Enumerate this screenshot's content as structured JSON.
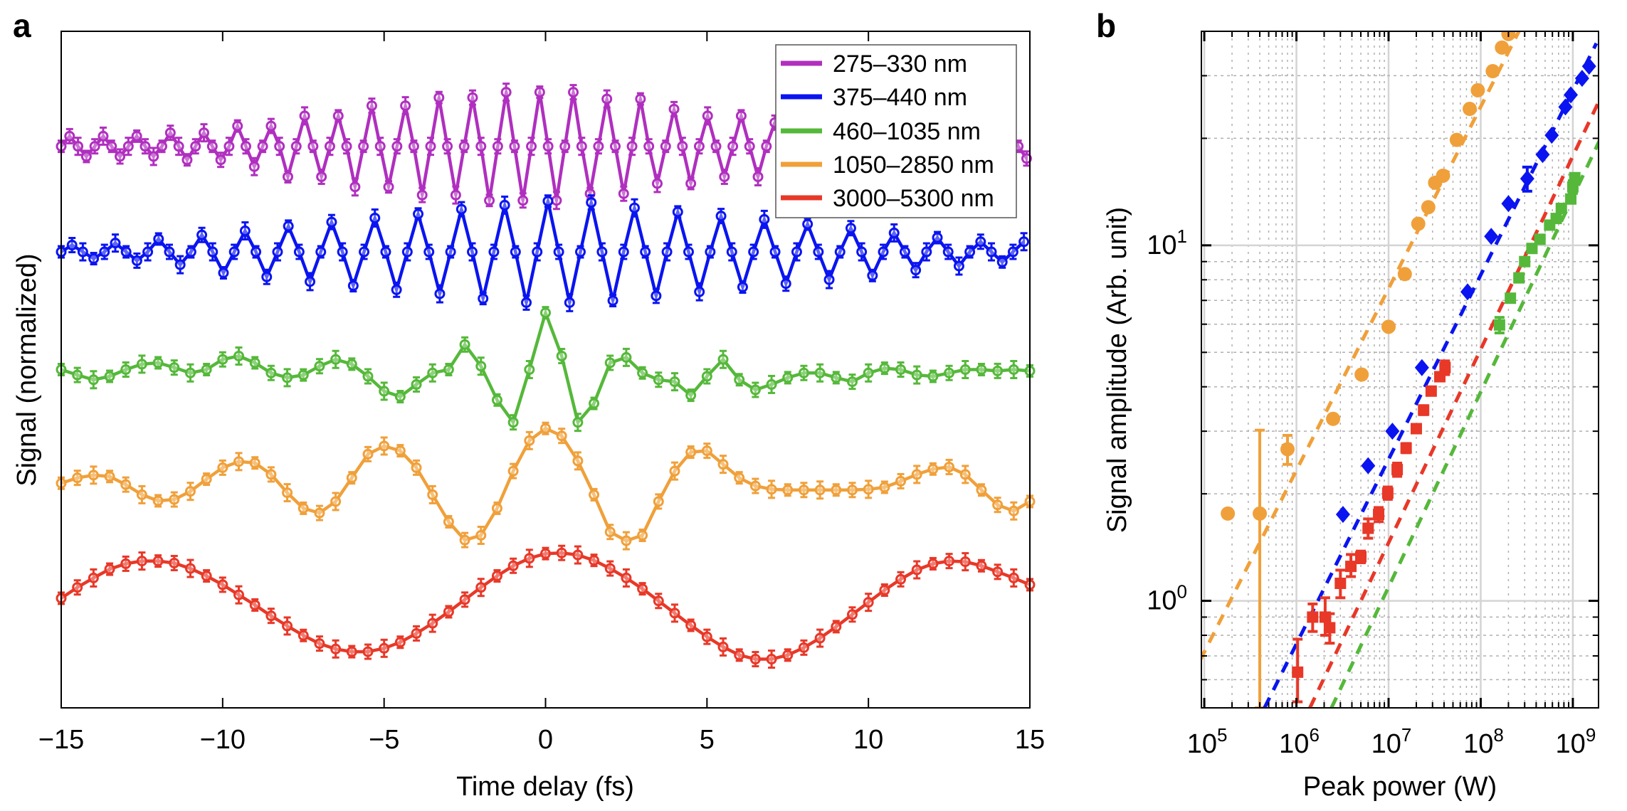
{
  "figure": {
    "panel_labels": [
      "a",
      "b"
    ]
  },
  "chart_data": [
    {
      "panel": "a",
      "type": "line",
      "title": "",
      "xlabel": "Time delay (fs)",
      "ylabel": "Signal (normalized)",
      "xlim": [
        -15,
        15
      ],
      "ylim": [
        0,
        10
      ],
      "xticks": [
        -15,
        -10,
        -5,
        0,
        5,
        10,
        15
      ],
      "xtick_labels": [
        "−15",
        "−10",
        "−5",
        "0",
        "5",
        "10",
        "15"
      ],
      "yticks_shown": false,
      "grid": false,
      "legend_position": "top-right",
      "markers": "open circles with error bars, joined by solid lines",
      "series": [
        {
          "name": "275–330 nm",
          "color": "#b02fbf",
          "x_start": -15,
          "x_step": 0.26,
          "y": [
            8.3,
            8.45,
            8.3,
            8.15,
            8.3,
            8.45,
            8.3,
            8.15,
            8.3,
            8.45,
            8.3,
            8.15,
            8.3,
            8.5,
            8.3,
            8.1,
            8.3,
            8.5,
            8.3,
            8.1,
            8.3,
            8.6,
            8.3,
            8.0,
            8.3,
            8.6,
            8.3,
            7.85,
            8.3,
            8.75,
            8.3,
            7.85,
            8.3,
            8.75,
            8.3,
            7.7,
            8.3,
            8.9,
            8.3,
            7.7,
            8.3,
            8.9,
            8.3,
            7.58,
            8.3,
            9.02,
            8.3,
            7.58,
            8.3,
            9.02,
            8.3,
            7.5,
            8.3,
            9.1,
            8.3,
            7.5,
            8.3,
            9.1,
            8.3,
            7.5,
            8.3,
            9.1,
            8.3,
            7.6,
            8.3,
            9.0,
            8.3,
            7.6,
            8.3,
            9.0,
            8.3,
            7.75,
            8.3,
            8.85,
            8.3,
            7.75,
            8.3,
            8.75,
            8.3,
            7.85,
            8.3,
            8.75,
            8.3,
            7.85,
            8.3,
            8.65,
            8.3,
            7.95,
            8.3,
            8.65,
            8.3,
            7.95,
            8.3,
            8.65,
            8.3,
            7.95,
            8.3,
            8.55,
            8.3,
            8.05,
            8.3,
            8.55,
            8.3,
            8.05,
            8.3,
            8.55,
            8.3,
            8.05,
            8.3,
            8.48,
            8.3,
            8.12,
            8.3,
            8.48,
            8.3,
            8.12
          ]
        },
        {
          "name": "375–440 nm",
          "color": "#0a14f0",
          "x_start": -15,
          "x_step": 0.335,
          "y": [
            6.74,
            6.84,
            6.74,
            6.64,
            6.74,
            6.87,
            6.74,
            6.61,
            6.74,
            6.93,
            6.74,
            6.55,
            6.74,
            6.99,
            6.74,
            6.43,
            6.74,
            7.05,
            6.74,
            6.37,
            6.74,
            7.12,
            6.74,
            6.3,
            6.74,
            7.18,
            6.74,
            6.24,
            6.74,
            7.24,
            6.74,
            6.18,
            6.74,
            7.3,
            6.74,
            6.12,
            6.74,
            7.37,
            6.74,
            6.05,
            6.74,
            7.43,
            6.74,
            5.99,
            6.74,
            7.49,
            6.74,
            5.99,
            6.74,
            7.47,
            6.74,
            6.02,
            6.74,
            7.39,
            6.74,
            6.09,
            6.74,
            7.33,
            6.74,
            6.15,
            6.74,
            7.27,
            6.74,
            6.22,
            6.74,
            7.22,
            6.74,
            6.27,
            6.74,
            7.15,
            6.74,
            6.33,
            6.74,
            7.09,
            6.74,
            6.39,
            6.74,
            7.02,
            6.74,
            6.47,
            6.74,
            6.95,
            6.74,
            6.53,
            6.74,
            6.89,
            6.74,
            6.59,
            6.74,
            6.89
          ]
        },
        {
          "name": "460–1035 nm",
          "color": "#55b83a",
          "x_start": -15,
          "x_step": 0.5,
          "y": [
            5.0,
            4.92,
            4.85,
            4.9,
            5.0,
            5.08,
            5.1,
            5.03,
            4.95,
            5.0,
            5.15,
            5.2,
            5.1,
            4.95,
            4.88,
            4.92,
            5.05,
            5.15,
            5.08,
            4.9,
            4.68,
            4.6,
            4.78,
            4.95,
            5.0,
            5.37,
            5.05,
            4.55,
            4.22,
            5.0,
            5.84,
            5.2,
            4.22,
            4.5,
            5.1,
            5.18,
            4.95,
            4.85,
            4.82,
            4.62,
            4.9,
            5.15,
            4.85,
            4.7,
            4.78,
            4.88,
            4.95,
            4.95,
            4.88,
            4.82,
            4.95,
            5.02,
            5.0,
            4.92,
            4.9,
            4.95,
            5.0,
            5.0,
            4.98,
            5.0,
            4.98
          ]
        },
        {
          "name": "1050–2850 nm",
          "color": "#f0a03a",
          "x_start": -15,
          "x_step": 0.5,
          "y": [
            3.32,
            3.4,
            3.44,
            3.42,
            3.3,
            3.15,
            3.06,
            3.08,
            3.2,
            3.38,
            3.55,
            3.64,
            3.62,
            3.45,
            3.18,
            2.95,
            2.88,
            3.05,
            3.4,
            3.75,
            3.87,
            3.8,
            3.55,
            3.15,
            2.75,
            2.48,
            2.55,
            2.95,
            3.5,
            3.95,
            4.13,
            4.02,
            3.65,
            3.15,
            2.6,
            2.47,
            2.55,
            3.05,
            3.5,
            3.78,
            3.8,
            3.6,
            3.4,
            3.28,
            3.23,
            3.22,
            3.22,
            3.22,
            3.22,
            3.22,
            3.23,
            3.26,
            3.35,
            3.45,
            3.53,
            3.56,
            3.45,
            3.22,
            3.0,
            2.91,
            3.05
          ]
        },
        {
          "name": "3000–5300 nm",
          "color": "#e83828",
          "x_start": -15,
          "x_step": 0.5,
          "y": [
            1.62,
            1.78,
            1.92,
            2.05,
            2.13,
            2.17,
            2.17,
            2.14,
            2.06,
            1.95,
            1.82,
            1.67,
            1.52,
            1.36,
            1.21,
            1.07,
            0.95,
            0.87,
            0.83,
            0.83,
            0.88,
            0.97,
            1.1,
            1.25,
            1.42,
            1.6,
            1.78,
            1.95,
            2.1,
            2.21,
            2.28,
            2.29,
            2.26,
            2.18,
            2.06,
            1.92,
            1.76,
            1.58,
            1.4,
            1.22,
            1.05,
            0.9,
            0.78,
            0.72,
            0.72,
            0.78,
            0.89,
            1.03,
            1.2,
            1.38,
            1.56,
            1.74,
            1.9,
            2.04,
            2.13,
            2.17,
            2.16,
            2.1,
            2.01,
            1.92,
            1.82
          ]
        }
      ]
    },
    {
      "panel": "b",
      "type": "scatter",
      "title": "",
      "xlabel": "Peak power (W)",
      "ylabel": "Signal amplitude (Arb. unit)",
      "xscale": "log",
      "yscale": "log",
      "xlim": [
        93000,
        1900000000
      ],
      "ylim": [
        0.5,
        40
      ],
      "xticks": [
        100000,
        1000000,
        10000000,
        100000000,
        1000000000
      ],
      "xtick_labels": [
        {
          "base": "10",
          "exp": "5"
        },
        {
          "base": "10",
          "exp": "6"
        },
        {
          "base": "10",
          "exp": "7"
        },
        {
          "base": "10",
          "exp": "8"
        },
        {
          "base": "10",
          "exp": "9"
        }
      ],
      "yticks": [
        1,
        10
      ],
      "ytick_labels": [
        {
          "base": "10",
          "exp": "0"
        },
        {
          "base": "10",
          "exp": "1"
        }
      ],
      "grid": true,
      "series": [
        {
          "name": "1050–2850 nm",
          "color": "#f0a03a",
          "marker": "circle",
          "points": [
            [
              180000,
              1.76
            ],
            [
              400000,
              1.76
            ],
            [
              800000,
              2.67
            ],
            [
              2500000,
              3.25
            ],
            [
              5100000,
              4.33
            ],
            [
              10000000,
              5.9
            ],
            [
              15000000,
              8.3
            ],
            [
              21000000,
              11.5
            ],
            [
              27000000,
              12.8
            ],
            [
              32000000,
              15.0
            ],
            [
              39000000,
              15.7
            ],
            [
              55000000,
              19.8
            ],
            [
              76000000,
              24.2
            ],
            [
              93000000,
              27.3
            ],
            [
              135000000,
              30.9
            ],
            [
              170000000,
              36.0
            ],
            [
              200000000,
              39.3
            ]
          ],
          "errors": [
            [
              0,
              0
            ],
            [
              1.26,
              1.26
            ],
            [
              0.25,
              0.25
            ],
            [
              0,
              0
            ],
            [
              0,
              0
            ],
            [
              0,
              0
            ],
            [
              0,
              0
            ],
            [
              0,
              0
            ],
            [
              0,
              0
            ],
            [
              0,
              0
            ],
            [
              0,
              0
            ],
            [
              0,
              0
            ],
            [
              0,
              0
            ],
            [
              0,
              0
            ],
            [
              0,
              0
            ],
            [
              0,
              0
            ],
            [
              0,
              0
            ]
          ],
          "fit": {
            "style": "dashed",
            "from": [
              90000,
              0.68
            ],
            "to": [
              260000000,
              40
            ]
          }
        },
        {
          "name": "375–440 nm",
          "color": "#0a14f0",
          "marker": "diamond",
          "points": [
            [
              3200000,
              1.75
            ],
            [
              6000000,
              2.4
            ],
            [
              11000000,
              3.0
            ],
            [
              23000000,
              4.53
            ],
            [
              72000000,
              7.4
            ],
            [
              130000000,
              10.6
            ],
            [
              200000000,
              13.1
            ],
            [
              320000000,
              15.4
            ],
            [
              470000000,
              18.0
            ],
            [
              590000000,
              20.4
            ],
            [
              830000000,
              24.5
            ],
            [
              950000000,
              26.5
            ],
            [
              1260000000,
              29.5
            ],
            [
              1500000000,
              31.9
            ]
          ],
          "errors": [
            [
              0,
              0
            ],
            [
              0,
              0
            ],
            [
              0,
              0
            ],
            [
              0,
              0
            ],
            [
              0,
              0
            ],
            [
              0,
              0
            ],
            [
              0,
              0
            ],
            [
              1.2,
              1.2
            ],
            [
              0,
              0
            ],
            [
              0,
              0
            ],
            [
              0,
              0
            ],
            [
              0,
              0
            ],
            [
              0,
              0
            ],
            [
              0,
              0
            ]
          ],
          "fit": {
            "style": "dashed",
            "from": [
              450000,
              0.5
            ],
            "to": [
              1800000000,
              37
            ]
          }
        },
        {
          "name": "3000–5300 nm",
          "color": "#e83828",
          "marker": "square",
          "points": [
            [
              1030000,
              0.63
            ],
            [
              1500000,
              0.9
            ],
            [
              2050000,
              0.9
            ],
            [
              2300000,
              0.84
            ],
            [
              3000000,
              1.12
            ],
            [
              3900000,
              1.25
            ],
            [
              5000000,
              1.33
            ],
            [
              6000000,
              1.6
            ],
            [
              7800000,
              1.75
            ],
            [
              9800000,
              2.01
            ],
            [
              12400000,
              2.34
            ],
            [
              15500000,
              2.69
            ],
            [
              20000000,
              3.05
            ],
            [
              24000000,
              3.44
            ],
            [
              29000000,
              3.89
            ],
            [
              36000000,
              4.27
            ],
            [
              41000000,
              4.53
            ]
          ],
          "errors": [
            [
              0.11,
              0.15
            ],
            [
              0.08,
              0.08
            ],
            [
              0.1,
              0.12
            ],
            [
              0.08,
              0.08
            ],
            [
              0.1,
              0.1
            ],
            [
              0.08,
              0.1
            ],
            [
              0.05,
              0.05
            ],
            [
              0.1,
              0.1
            ],
            [
              0.08,
              0.08
            ],
            [
              0.08,
              0.08
            ],
            [
              0.1,
              0.1
            ],
            [
              0.08,
              0.08
            ],
            [
              0,
              0
            ],
            [
              0.1,
              0.1
            ],
            [
              0.1,
              0.1
            ],
            [
              0,
              0
            ],
            [
              0.2,
              0.2
            ]
          ],
          "fit": {
            "style": "dashed",
            "from": [
              1400000,
              0.5
            ],
            "to": [
              2000000000,
              26
            ]
          }
        },
        {
          "name": "460–1035 nm",
          "color": "#55b83a",
          "marker": "square",
          "points": [
            [
              160000000,
              5.97
            ],
            [
              210000000,
              7.1
            ],
            [
              260000000,
              8.1
            ],
            [
              300000000,
              9.0
            ],
            [
              360000000,
              9.8
            ],
            [
              440000000,
              10.4
            ],
            [
              560000000,
              11.4
            ],
            [
              660000000,
              11.9
            ],
            [
              750000000,
              12.7
            ],
            [
              950000000,
              13.5
            ],
            [
              1000000000,
              14.6
            ],
            [
              1050000000,
              15.5
            ]
          ],
          "errors": [
            [
              0.3,
              0.3
            ],
            [
              0,
              0
            ],
            [
              0,
              0
            ],
            [
              0,
              0
            ],
            [
              0,
              0
            ],
            [
              0,
              0
            ],
            [
              0,
              0
            ],
            [
              0,
              0
            ],
            [
              0,
              0
            ],
            [
              0,
              0
            ],
            [
              0.6,
              0.6
            ],
            [
              0,
              0
            ]
          ],
          "fit": {
            "style": "dashed",
            "from": [
              2400000,
              0.5
            ],
            "to": [
              2000000000,
              20
            ]
          }
        }
      ]
    }
  ]
}
